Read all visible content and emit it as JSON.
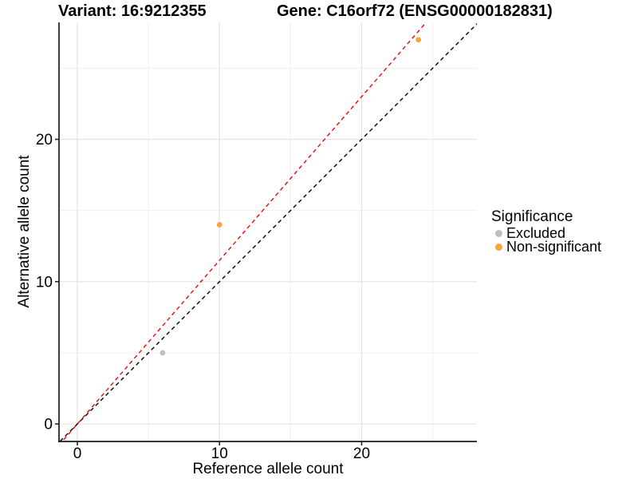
{
  "titles": {
    "variant": "Variant: 16:9212355",
    "gene": "Gene: C16orf72 (ENSG00000182831)"
  },
  "colors": {
    "text": "#000000",
    "axis": "#1a1a1a",
    "grid_major": "#e3e3e3",
    "grid_minor": "#efefef",
    "excluded": "#BEBEBE",
    "non_significant": "#FAA43A",
    "fit_line": "#FF0000",
    "identity_line": "#000000"
  },
  "chart_data": {
    "type": "scatter",
    "xlabel": "Reference allele count",
    "ylabel": "Alternative allele count",
    "xlim": [
      -1.29,
      28.11
    ],
    "ylim": [
      -1.23,
      28.22
    ],
    "x_ticks": [
      0,
      10,
      20
    ],
    "y_ticks": [
      0,
      10,
      20
    ],
    "x_minor_ticks": [
      5,
      15,
      25
    ],
    "y_minor_ticks": [
      5,
      15,
      25
    ],
    "grid": true,
    "series": [
      {
        "name": "Excluded",
        "color": "#BEBEBE",
        "points": [
          [
            6,
            5
          ]
        ]
      },
      {
        "name": "Non-significant",
        "color": "#FAA43A",
        "points": [
          [
            10,
            14
          ],
          [
            24,
            27
          ]
        ]
      }
    ],
    "lines": [
      {
        "name": "identity-line",
        "slope": 1.0,
        "intercept": 0,
        "color": "#000000",
        "style": "dashed"
      },
      {
        "name": "fit-line",
        "slope": 1.15,
        "intercept": 0,
        "color": "#FF0000",
        "style": "dashed"
      }
    ],
    "legend": {
      "title": "Significance",
      "position": "right",
      "items": [
        {
          "label": "Excluded",
          "color": "#BEBEBE"
        },
        {
          "label": "Non-significant",
          "color": "#FAA43A"
        }
      ]
    }
  }
}
